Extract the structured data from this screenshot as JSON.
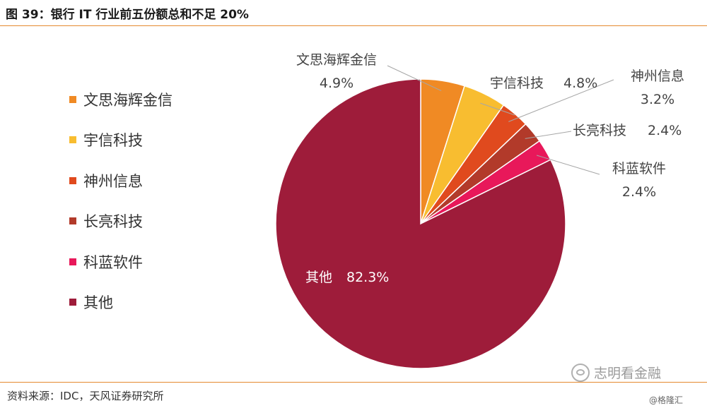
{
  "header": {
    "title": "图 39：银行 IT 行业前五份额总和不足 20%"
  },
  "chart_data": {
    "type": "pie",
    "start_angle_deg": 0,
    "direction": "clockwise",
    "legend_position": "left",
    "slices": [
      {
        "name": "文思海辉金信",
        "value": 4.9,
        "display": "4.9%",
        "color": "#F08A24"
      },
      {
        "name": "宇信科技",
        "value": 4.8,
        "display": "4.8%",
        "color": "#F8BD30"
      },
      {
        "name": "神州信息",
        "value": 3.2,
        "display": "3.2%",
        "color": "#E04A1E"
      },
      {
        "name": "长亮科技",
        "value": 2.4,
        "display": "2.4%",
        "color": "#B23A2A"
      },
      {
        "name": "科蓝软件",
        "value": 2.4,
        "display": "2.4%",
        "color": "#E8185A"
      },
      {
        "name": "其他",
        "value": 82.3,
        "display": "82.3%",
        "color": "#9E1C3A"
      }
    ]
  },
  "footer": {
    "source": "资料来源：IDC，天风证券研究所"
  },
  "watermark": {
    "text": "志明看金融",
    "stamp": "@格隆汇"
  }
}
